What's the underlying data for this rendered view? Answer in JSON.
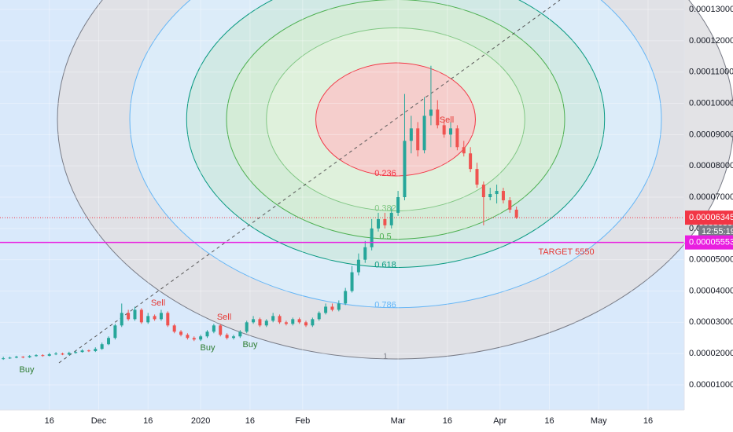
{
  "chart_data": {
    "type": "candlestick",
    "xlim": [
      0,
      104
    ],
    "xticks": [
      {
        "value": 7.5,
        "label": "16"
      },
      {
        "value": 15,
        "label": "Dec"
      },
      {
        "value": 22.5,
        "label": "16"
      },
      {
        "value": 30.5,
        "label": "2020"
      },
      {
        "value": 38,
        "label": "16"
      },
      {
        "value": 46,
        "label": "Feb"
      },
      {
        "value": 60.5,
        "label": "Mar"
      },
      {
        "value": 68,
        "label": "16"
      },
      {
        "value": 76,
        "label": "Apr"
      },
      {
        "value": 83.5,
        "label": "16"
      },
      {
        "value": 91,
        "label": "May"
      },
      {
        "value": 98.5,
        "label": "16"
      }
    ],
    "ylim": [
      1.966e-06,
      0.00013302
    ],
    "yticks": [
      {
        "value": 1e-05,
        "label": "0.00001000"
      },
      {
        "value": 2e-05,
        "label": "0.00002000"
      },
      {
        "value": 3e-05,
        "label": "0.00003000"
      },
      {
        "value": 4e-05,
        "label": "0.00004000"
      },
      {
        "value": 5e-05,
        "label": "0.00005000"
      },
      {
        "value": 6e-05,
        "label": "0.00006000"
      },
      {
        "value": 7e-05,
        "label": "0.00007000"
      },
      {
        "value": 8e-05,
        "label": "0.00008000"
      },
      {
        "value": 9e-05,
        "label": "0.00009000"
      },
      {
        "value": 0.0001,
        "label": "0.00010000"
      },
      {
        "value": 0.00011,
        "label": "0.00011000"
      },
      {
        "value": 0.00012,
        "label": "0.00012000"
      },
      {
        "value": 0.00013,
        "label": "0.00013000"
      }
    ],
    "up_color": "#26a69a",
    "down_color": "#ef5350",
    "open": [
      1.84e-05,
      1.85e-05,
      1.87e-05,
      1.9e-05,
      1.88e-05,
      1.92e-05,
      1.95e-05,
      1.93e-05,
      1.98e-05,
      2e-05,
      1.97e-05,
      2.02e-05,
      2.05e-05,
      2.1e-05,
      2.08e-05,
      2.15e-05,
      2.3e-05,
      2.5e-05,
      2.9e-05,
      3.3e-05,
      3.1e-05,
      3.4e-05,
      3e-05,
      3.2e-05,
      3.1e-05,
      3.3e-05,
      2.9e-05,
      2.7e-05,
      2.6e-05,
      2.5e-05,
      2.45e-05,
      2.55e-05,
      2.7e-05,
      2.9e-05,
      2.6e-05,
      2.5e-05,
      2.55e-05,
      2.7e-05,
      3e-05,
      3.1e-05,
      2.9e-05,
      3.05e-05,
      3.2e-05,
      3e-05,
      2.95e-05,
      3.1e-05,
      3e-05,
      2.9e-05,
      3.1e-05,
      3.3e-05,
      3.5e-05,
      3.4e-05,
      3.6e-05,
      4e-05,
      4.6e-05,
      5e-05,
      5.4e-05,
      6e-05,
      6.3e-05,
      6.1e-05,
      6.5e-05,
      7e-05,
      8.8e-05,
      9.2e-05,
      8.5e-05,
      9.6e-05,
      9.8e-05,
      9.3e-05,
      9e-05,
      9.2e-05,
      8.6e-05,
      8.4e-05,
      7.9e-05,
      7.4e-05,
      7e-05,
      7.1e-05,
      7.2e-05,
      6.9e-05,
      6.6e-05
    ],
    "high": [
      1.9e-05,
      1.9e-05,
      1.93e-05,
      1.92e-05,
      1.95e-05,
      1.98e-05,
      1.98e-05,
      2.02e-05,
      2.05e-05,
      2.03e-05,
      2.06e-05,
      2.09e-05,
      2.14e-05,
      2.13e-05,
      2.2e-05,
      2.35e-05,
      2.55e-05,
      2.95e-05,
      3.6e-05,
      3.4e-05,
      3.5e-05,
      3.45e-05,
      3.3e-05,
      3.25e-05,
      3.4e-05,
      3.35e-05,
      2.95e-05,
      2.75e-05,
      2.65e-05,
      2.55e-05,
      2.6e-05,
      2.75e-05,
      2.95e-05,
      2.95e-05,
      2.65e-05,
      2.6e-05,
      2.75e-05,
      3.05e-05,
      3.2e-05,
      3.15e-05,
      3.1e-05,
      3.3e-05,
      3.25e-05,
      3.05e-05,
      3.15e-05,
      3.15e-05,
      3.05e-05,
      3.15e-05,
      3.35e-05,
      3.6e-05,
      3.6e-05,
      3.7e-05,
      4.1e-05,
      4.8e-05,
      5.2e-05,
      5.6e-05,
      6.3e-05,
      6.5e-05,
      6.5e-05,
      6.7e-05,
      7.2e-05,
      0.000103,
      9.6e-05,
      9.4e-05,
      0.000102,
      0.000112,
      0.000101,
      9.5e-05,
      9.4e-05,
      9.3e-05,
      8.8e-05,
      8.6e-05,
      8.1e-05,
      7.5e-05,
      7.3e-05,
      7.4e-05,
      7.3e-05,
      7e-05,
      6.7e-05
    ],
    "low": [
      1.8e-05,
      1.83e-05,
      1.85e-05,
      1.85e-05,
      1.86e-05,
      1.9e-05,
      1.9e-05,
      1.91e-05,
      1.95e-05,
      1.95e-05,
      1.95e-05,
      2e-05,
      2.03e-05,
      2.05e-05,
      2.05e-05,
      2.12e-05,
      2.27e-05,
      2.45e-05,
      2.85e-05,
      3.05e-05,
      3.05e-05,
      2.95e-05,
      2.95e-05,
      3.05e-05,
      3.05e-05,
      2.85e-05,
      2.65e-05,
      2.55e-05,
      2.45e-05,
      2.4e-05,
      2.4e-05,
      2.5e-05,
      2.65e-05,
      2.55e-05,
      2.45e-05,
      2.45e-05,
      2.5e-05,
      2.65e-05,
      2.95e-05,
      2.85e-05,
      2.85e-05,
      3e-05,
      2.95e-05,
      2.9e-05,
      2.9e-05,
      2.95e-05,
      2.85e-05,
      2.85e-05,
      3.05e-05,
      3.25e-05,
      3.35e-05,
      3.35e-05,
      3.55e-05,
      3.95e-05,
      4.5e-05,
      4.9e-05,
      5.3e-05,
      5.9e-05,
      6e-05,
      6e-05,
      6.4e-05,
      6.9e-05,
      8.4e-05,
      8.3e-05,
      8.4e-05,
      9.3e-05,
      9.2e-05,
      8.9e-05,
      8.6e-05,
      8.5e-05,
      8.3e-05,
      7.8e-05,
      7.3e-05,
      6.1e-05,
      6.9e-05,
      6.8e-05,
      6.8e-05,
      6.5e-05,
      6.3e-05
    ],
    "close": [
      1.85e-05,
      1.87e-05,
      1.9e-05,
      1.88e-05,
      1.92e-05,
      1.95e-05,
      1.93e-05,
      1.98e-05,
      2e-05,
      1.97e-05,
      2.02e-05,
      2.05e-05,
      2.1e-05,
      2.08e-05,
      2.15e-05,
      2.3e-05,
      2.5e-05,
      2.9e-05,
      3.3e-05,
      3.1e-05,
      3.4e-05,
      3e-05,
      3.2e-05,
      3.1e-05,
      3.3e-05,
      2.9e-05,
      2.7e-05,
      2.6e-05,
      2.5e-05,
      2.45e-05,
      2.55e-05,
      2.7e-05,
      2.9e-05,
      2.6e-05,
      2.5e-05,
      2.55e-05,
      2.7e-05,
      3e-05,
      3.1e-05,
      2.9e-05,
      3.05e-05,
      3.2e-05,
      3e-05,
      2.95e-05,
      3.1e-05,
      3e-05,
      2.9e-05,
      3.1e-05,
      3.3e-05,
      3.5e-05,
      3.4e-05,
      3.6e-05,
      4e-05,
      4.6e-05,
      5e-05,
      5.4e-05,
      6e-05,
      6.3e-05,
      6.1e-05,
      6.5e-05,
      7e-05,
      8.8e-05,
      9.2e-05,
      8.5e-05,
      9.6e-05,
      9.8e-05,
      9.3e-05,
      9e-05,
      9.2e-05,
      8.6e-05,
      8.4e-05,
      7.9e-05,
      7.4e-05,
      7e-05,
      7.1e-05,
      7.2e-05,
      6.9e-05,
      6.6e-05,
      6.345e-05
    ],
    "current_price": {
      "value": 6.345e-05,
      "label": "0.00006345",
      "color": "#f23645"
    },
    "countdown": "12:55:19",
    "target_line": {
      "value": 5.553e-05,
      "label": "0.00005553",
      "color": "#e91ee0"
    },
    "annotation": "TARGET 5550",
    "signals": [
      "Buy",
      "Sell",
      "Buy",
      "Sell",
      "Buy",
      "Sell"
    ],
    "fib_levels": [
      {
        "value": 1,
        "color": "#787b86",
        "fill": "#e0e0e3"
      },
      {
        "value": 0.786,
        "color": "#64b5f6",
        "fill": "#dcedfb"
      },
      {
        "value": 0.618,
        "color": "#089981",
        "fill": "#cfe9e2"
      },
      {
        "value": 0.5,
        "color": "#4caf50",
        "fill": "#d4ecd5"
      },
      {
        "value": 0.382,
        "color": "#81c784",
        "fill": "#e0f2dd"
      },
      {
        "value": 0.236,
        "color": "#f23645",
        "fill": "#f7caca"
      }
    ]
  }
}
